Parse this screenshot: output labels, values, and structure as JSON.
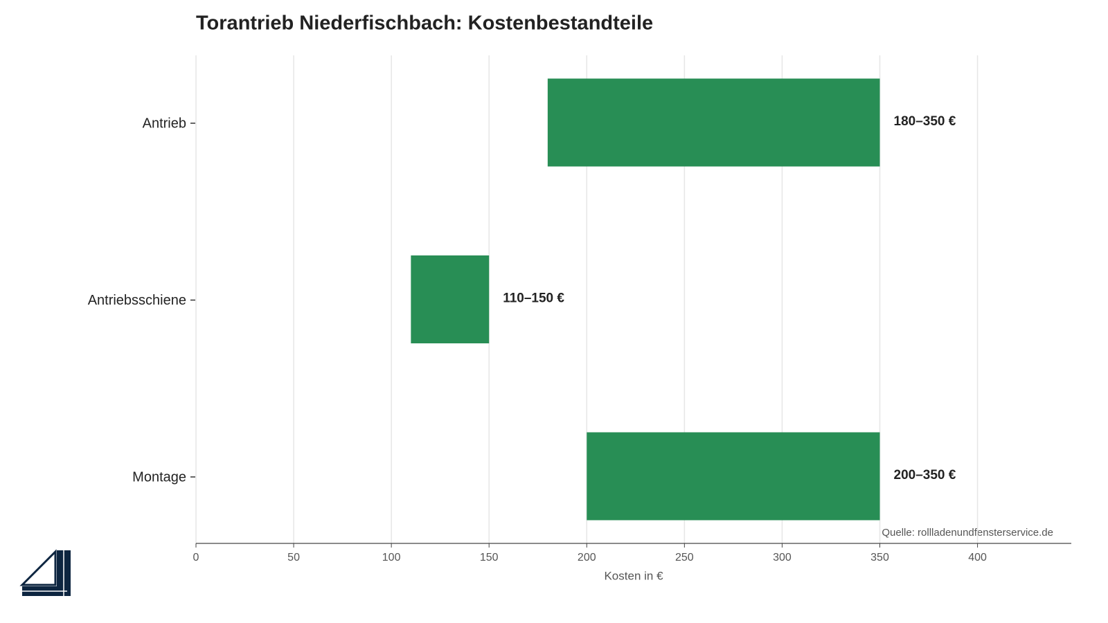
{
  "chart_data": {
    "type": "range-bar",
    "orientation": "horizontal",
    "title": "Torantrieb Niederfischbach: Kostenbestandteile",
    "categories": [
      "Antrieb",
      "Antriebsschiene",
      "Montage"
    ],
    "low": [
      180,
      110,
      200
    ],
    "high": [
      350,
      150,
      350
    ],
    "value_labels": [
      "180–350 €",
      "110–150 €",
      "200–350 €"
    ],
    "color": "#218a4f",
    "xlabel": "Kosten in €",
    "xlim": [
      0,
      448
    ],
    "xticks": [
      0,
      50,
      100,
      150,
      200,
      250,
      300,
      350,
      400
    ],
    "grid": true,
    "source": "Quelle: rollladenundfensterservice.de"
  }
}
